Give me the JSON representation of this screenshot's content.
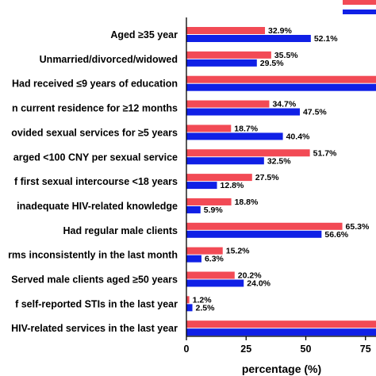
{
  "colors": {
    "series_a": "#f24a55",
    "series_b": "#1020e6"
  },
  "chart_data": {
    "type": "bar",
    "orientation": "horizontal",
    "xlabel": "percentage (%)",
    "xlim": [
      0,
      80
    ],
    "xticks": [
      0,
      25,
      50,
      75
    ],
    "legend": "top-right",
    "grid": false,
    "categories": [
      "Aged ≥35 year",
      "Unmarried/divorced/widowed",
      "Had received ≤9 years of education",
      "n current residence for ≥12 months",
      "ovided sexual services for ≥5 years",
      "arged <100 CNY per sexual service",
      "f first sexual intercourse <18 years",
      "inadequate HIV-related knowledge",
      "Had regular male clients",
      "rms inconsistently in the last month",
      "Served male clients aged ≥50 years",
      "f self-reported STIs in the last year",
      "HIV-related services in the last year"
    ],
    "series": [
      {
        "color": "#f24a55",
        "values": [
          32.9,
          35.5,
          82,
          34.7,
          18.7,
          51.7,
          27.5,
          18.8,
          65.3,
          15.2,
          20.2,
          1.2,
          82
        ],
        "labels": [
          "32.9%",
          "35.5%",
          "",
          "34.7%",
          "18.7%",
          "51.7%",
          "27.5%",
          "18.8%",
          "65.3%",
          "15.2%",
          "20.2%",
          "1.2%",
          ""
        ]
      },
      {
        "color": "#1020e6",
        "values": [
          52.1,
          29.5,
          82,
          47.5,
          40.4,
          32.5,
          12.8,
          5.9,
          56.6,
          6.3,
          24.0,
          2.5,
          82
        ],
        "labels": [
          "52.1%",
          "29.5%",
          "",
          "47.5%",
          "40.4%",
          "32.5%",
          "12.8%",
          "5.9%",
          "56.6%",
          "6.3%",
          "24.0%",
          "2.5%",
          ""
        ]
      }
    ]
  }
}
